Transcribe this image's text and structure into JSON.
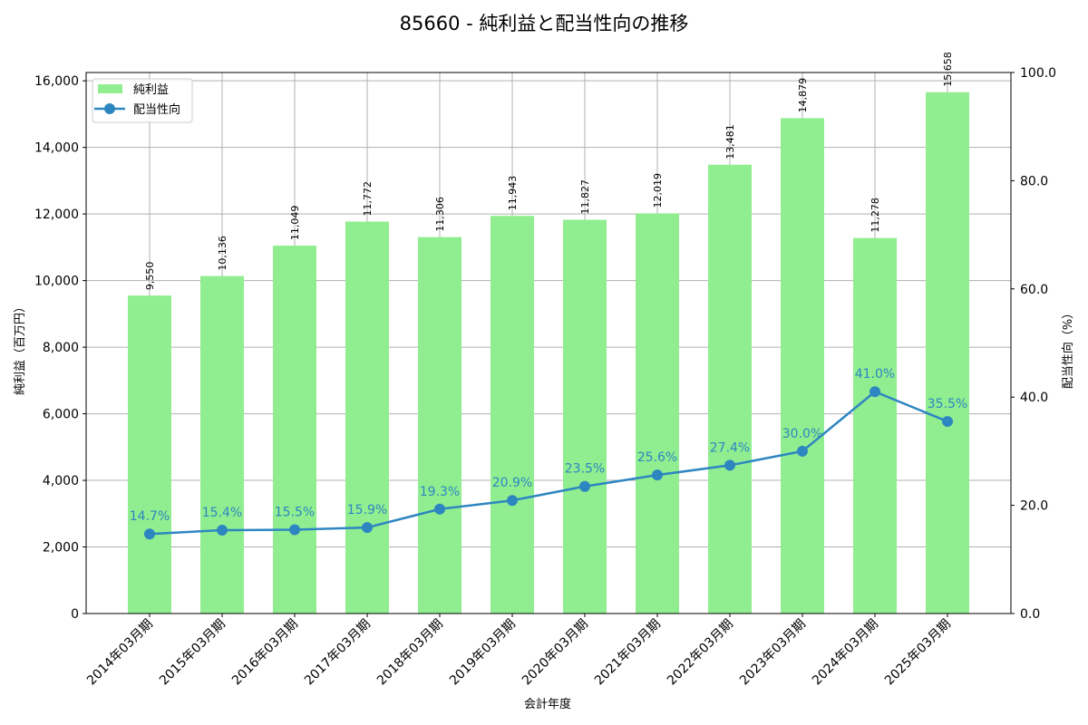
{
  "chart_data": {
    "type": "bar+line",
    "title": "85660 - 純利益と配当性向の推移",
    "xlabel": "会計年度",
    "ylabel": "純利益（百万円）",
    "y2label": "配当性向（%）",
    "categories": [
      "2014年03月期",
      "2015年03月期",
      "2016年03月期",
      "2017年03月期",
      "2018年03月期",
      "2019年03月期",
      "2020年03月期",
      "2021年03月期",
      "2022年03月期",
      "2023年03月期",
      "2024年03月期",
      "2025年03月期"
    ],
    "series": [
      {
        "name": "純利益",
        "type": "bar",
        "axis": "left",
        "color": "#90ee90",
        "values": [
          9550,
          10136,
          11049,
          11772,
          11306,
          11943,
          11827,
          12019,
          13481,
          14879,
          11278,
          15658
        ],
        "labels": [
          "9,550",
          "10,136",
          "11,049",
          "11,772",
          "11,306",
          "11,943",
          "11,827",
          "12,019",
          "13,481",
          "14,879",
          "11,278",
          "15,658"
        ]
      },
      {
        "name": "配当性向",
        "type": "line",
        "axis": "right",
        "color": "#2e86c1",
        "values": [
          14.7,
          15.4,
          15.5,
          15.9,
          19.3,
          20.9,
          23.5,
          25.6,
          27.4,
          30.0,
          41.0,
          35.5
        ],
        "labels": [
          "14.7%",
          "15.4%",
          "15.5%",
          "15.9%",
          "19.3%",
          "20.9%",
          "23.5%",
          "25.6%",
          "27.4%",
          "30.0%",
          "41.0%",
          "35.5%"
        ]
      }
    ],
    "ylim": [
      0,
      16250
    ],
    "y2lim": [
      0,
      100
    ],
    "yticks": [
      0,
      2000,
      4000,
      6000,
      8000,
      10000,
      12000,
      14000,
      16000
    ],
    "ytick_labels": [
      "0",
      "2,000",
      "4,000",
      "6,000",
      "8,000",
      "10,000",
      "12,000",
      "14,000",
      "16,000"
    ],
    "y2ticks": [
      0,
      20,
      40,
      60,
      80,
      100
    ],
    "y2tick_labels": [
      "0.0",
      "20.0",
      "40.0",
      "60.0",
      "80.0",
      "100.0"
    ],
    "grid": true,
    "legend_position": "upper left"
  }
}
